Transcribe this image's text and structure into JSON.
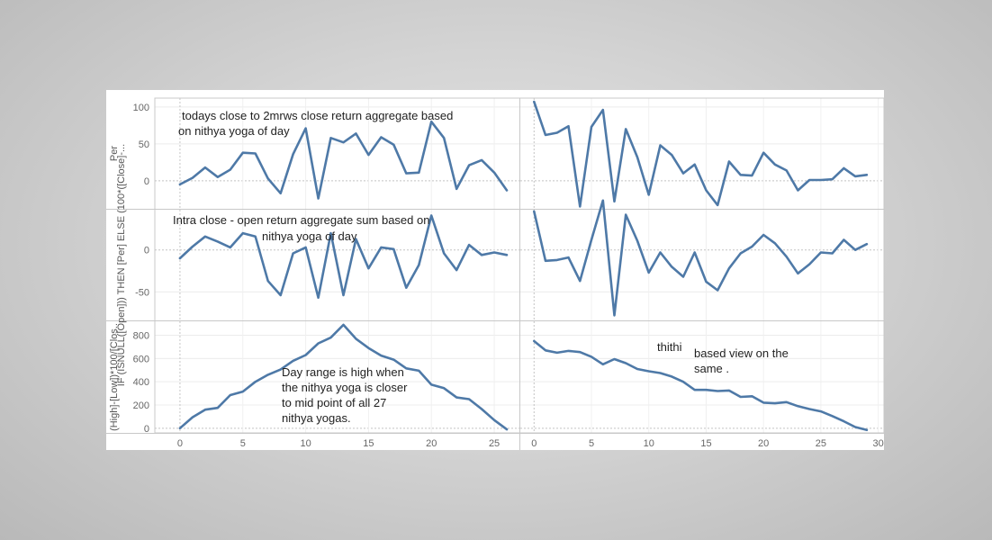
{
  "annotations": {
    "top_line1": "todays close to 2mrws close return aggregate based",
    "top_line2": "on nithya yoga of day",
    "mid_line1": "Intra close - open return aggregate sum based on",
    "mid_line2": "nithya yoga of day",
    "bottom": "Day range is high when the nithya yoga is closer to mid point of all 27 nithya yogas.",
    "thithi": "thithi",
    "thithi_desc": "based view on the same ."
  },
  "chart_data": {
    "type": "line",
    "line_color": "#4e79a7",
    "grid": true,
    "columns": [
      {
        "x": [
          0,
          1,
          2,
          3,
          4,
          5,
          6,
          7,
          8,
          9,
          10,
          11,
          12,
          13,
          14,
          15,
          16,
          17,
          18,
          19,
          20,
          21,
          22,
          23,
          24,
          25,
          26
        ],
        "xlim": [
          -2,
          27
        ],
        "xticks": [
          0,
          5,
          10,
          15,
          20,
          25
        ]
      },
      {
        "x": [
          0,
          1,
          2,
          3,
          4,
          5,
          6,
          7,
          8,
          9,
          10,
          11,
          12,
          13,
          14,
          15,
          16,
          17,
          18,
          19,
          20,
          21,
          22,
          23,
          24,
          25,
          26,
          27,
          28,
          29
        ],
        "xlim": [
          -1.2,
          30.5
        ],
        "xticks": [
          0,
          5,
          10,
          15,
          20,
          25,
          30
        ]
      }
    ],
    "rows": [
      {
        "ylabel": "Per",
        "ylim": [
          -38,
          112
        ],
        "yticks": [
          0,
          50,
          100
        ],
        "series": [
          [
            -5,
            4,
            18,
            5,
            15,
            38,
            37,
            3,
            -17,
            36,
            71,
            -24,
            58,
            52,
            64,
            35,
            59,
            49,
            10,
            11,
            80,
            58,
            -11,
            21,
            28,
            11,
            -13
          ],
          [
            107,
            62,
            65,
            74,
            -35,
            73,
            96,
            -28,
            70,
            32,
            -19,
            48,
            35,
            10,
            22,
            -13,
            -33,
            26,
            8,
            7,
            38,
            22,
            14,
            -13,
            1,
            1,
            2,
            17,
            6,
            8
          ]
        ]
      },
      {
        "ylabel": "IF (ISNULL([Open])) THEN [Per] ELSE (100*([Close]-...",
        "ylim": [
          -84,
          48
        ],
        "yticks": [
          0,
          -50
        ],
        "series": [
          [
            -10,
            4,
            16,
            10,
            3,
            20,
            16,
            -37,
            -54,
            -4,
            3,
            -57,
            20,
            -54,
            13,
            -22,
            3,
            1,
            -45,
            -18,
            41,
            -4,
            -24,
            6,
            -6,
            -3,
            -6
          ],
          [
            46,
            -13,
            -12,
            -9,
            -37,
            12,
            59,
            -78,
            42,
            11,
            -27,
            -3,
            -20,
            -32,
            -3,
            -38,
            -48,
            -22,
            -4,
            4,
            18,
            8,
            -8,
            -28,
            -17,
            -3,
            -4,
            12,
            0,
            7
          ]
        ]
      },
      {
        "ylabel": "(High]-[Low])*100/[Clos..",
        "ylim": [
          -40,
          920
        ],
        "yticks": [
          0,
          200,
          400,
          600,
          800
        ],
        "series": [
          [
            0,
            95,
            160,
            175,
            285,
            315,
            400,
            460,
            505,
            580,
            630,
            730,
            780,
            890,
            770,
            690,
            625,
            590,
            515,
            495,
            375,
            345,
            265,
            250,
            165,
            70,
            -10
          ],
          [
            750,
            670,
            650,
            665,
            655,
            615,
            550,
            595,
            560,
            510,
            490,
            475,
            445,
            400,
            330,
            330,
            320,
            325,
            270,
            275,
            220,
            215,
            225,
            190,
            165,
            145,
            105,
            60,
            10,
            -15
          ]
        ]
      }
    ]
  }
}
